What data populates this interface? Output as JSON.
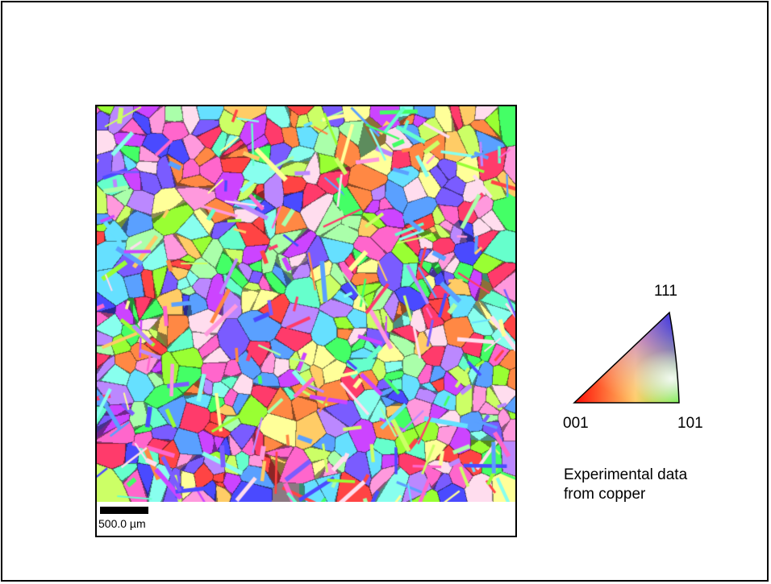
{
  "scale_bar": {
    "label": "500.0 µm"
  },
  "ipf_legend": {
    "vertex_111": "111",
    "vertex_001": "001",
    "vertex_101": "101",
    "colors": {
      "001": "#ff0000",
      "101": "#00ff00",
      "111": "#0000ff"
    }
  },
  "caption": {
    "line1": "Experimental data",
    "line2": "from copper"
  },
  "palette": [
    "#ff3b6b",
    "#ff66cc",
    "#cc44ff",
    "#7a5cff",
    "#4a4aff",
    "#5aa0ff",
    "#66e0ff",
    "#66ffcc",
    "#44ff66",
    "#99ff33",
    "#ccff66",
    "#ffff99",
    "#ffcc66",
    "#ff8844",
    "#ff4444",
    "#ff99dd",
    "#bb88ff",
    "#88ffee",
    "#aaffaa",
    "#ffddee"
  ]
}
